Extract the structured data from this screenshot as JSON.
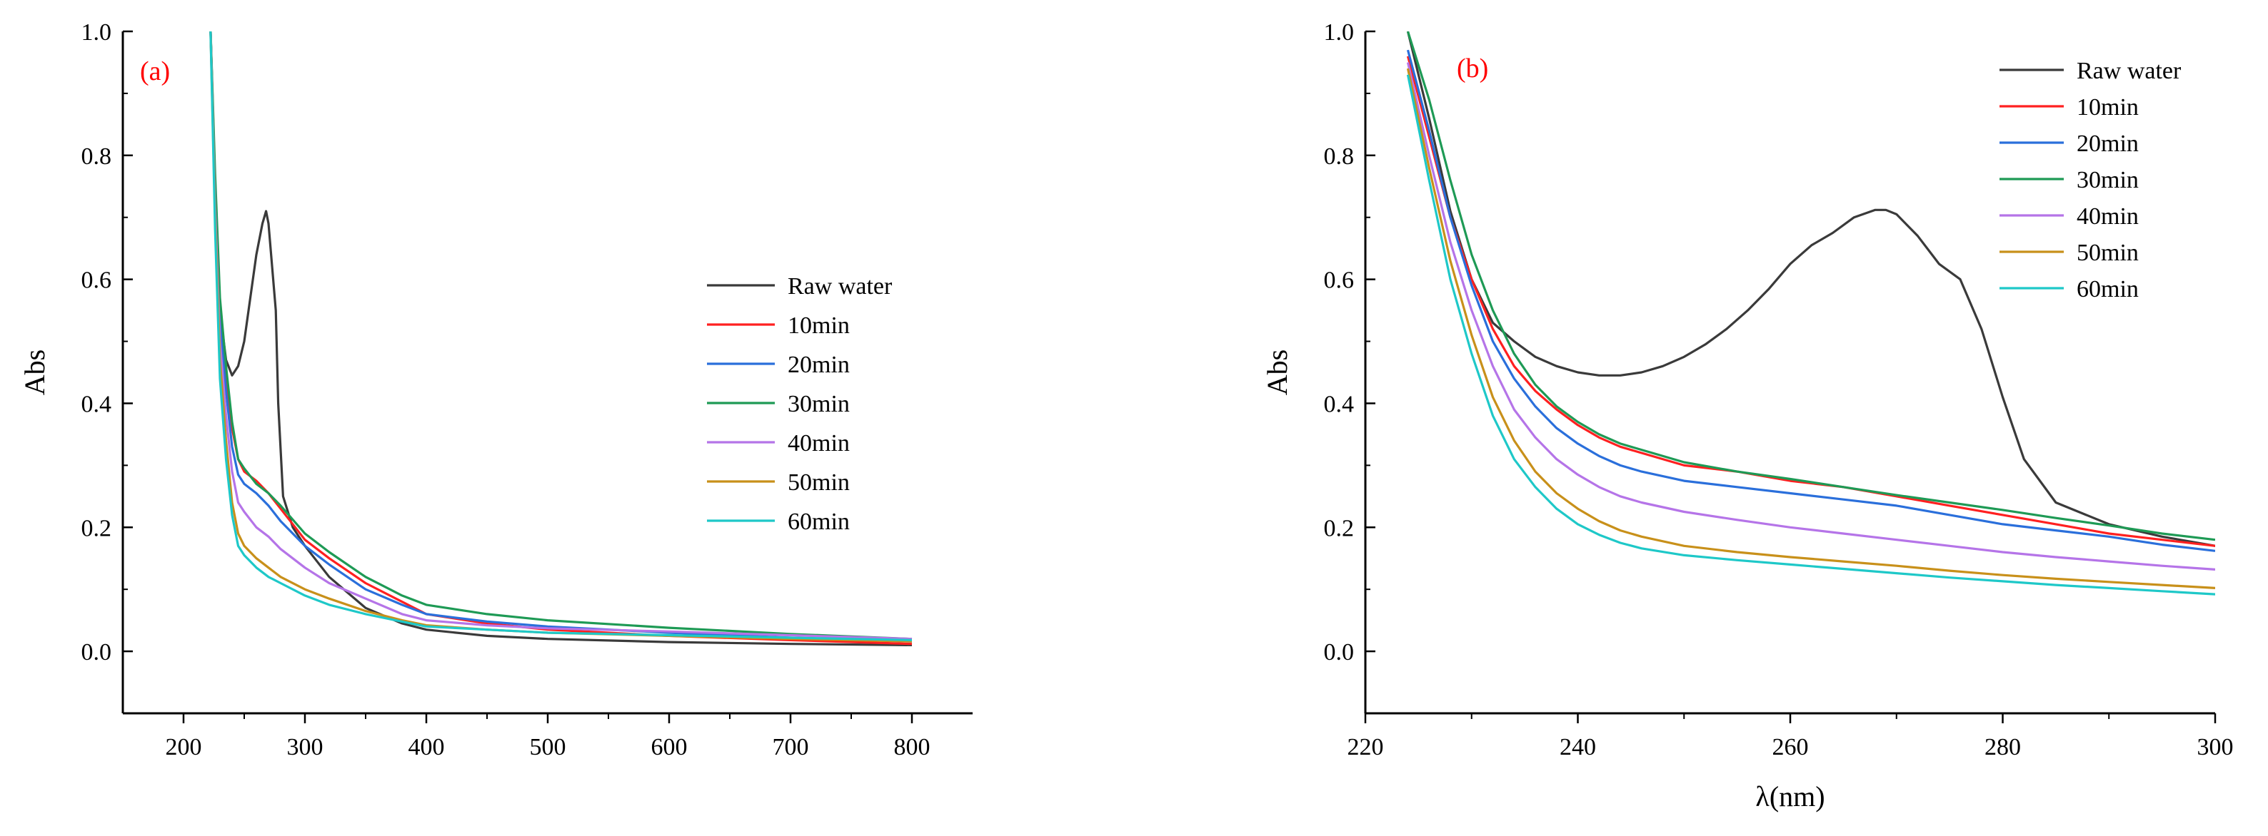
{
  "chart_data": [
    {
      "type": "line",
      "panel_label": "(a)",
      "title": "",
      "xlabel": "",
      "ylabel": "Abs",
      "xlim": [
        150,
        850
      ],
      "ylim": [
        -0.1,
        1.0
      ],
      "xticks": [
        200,
        300,
        400,
        500,
        600,
        700,
        800
      ],
      "xtick_labels": [
        "200",
        "300",
        "400",
        "500",
        "600",
        "700",
        "800"
      ],
      "yticks": [
        0.0,
        0.2,
        0.4,
        0.6,
        0.8,
        1.0
      ],
      "ytick_labels": [
        "0.0",
        "0.2",
        "0.4",
        "0.6",
        "0.8",
        "1.0"
      ],
      "legend_position": "right",
      "series": [
        {
          "name": "Raw water",
          "color": "#3a3a3a",
          "x": [
            222,
            226,
            230,
            235,
            240,
            245,
            250,
            255,
            260,
            265,
            268,
            270,
            273,
            276,
            278,
            282,
            290,
            300,
            320,
            350,
            380,
            400,
            450,
            500,
            600,
            700,
            800
          ],
          "y": [
            1.02,
            0.75,
            0.55,
            0.47,
            0.445,
            0.46,
            0.5,
            0.57,
            0.64,
            0.69,
            0.71,
            0.69,
            0.62,
            0.55,
            0.4,
            0.25,
            0.2,
            0.17,
            0.12,
            0.07,
            0.045,
            0.035,
            0.025,
            0.02,
            0.015,
            0.012,
            0.01
          ]
        },
        {
          "name": "10min",
          "color": "#ff2020",
          "x": [
            222,
            226,
            230,
            235,
            240,
            245,
            250,
            260,
            270,
            280,
            300,
            320,
            350,
            380,
            400,
            450,
            500,
            600,
            700,
            800
          ],
          "y": [
            1.02,
            0.75,
            0.55,
            0.45,
            0.36,
            0.31,
            0.29,
            0.275,
            0.255,
            0.23,
            0.18,
            0.15,
            0.11,
            0.08,
            0.06,
            0.045,
            0.035,
            0.025,
            0.018,
            0.012
          ]
        },
        {
          "name": "20min",
          "color": "#2a6fdb",
          "x": [
            222,
            226,
            230,
            235,
            240,
            245,
            250,
            260,
            270,
            280,
            300,
            320,
            350,
            380,
            400,
            450,
            500,
            600,
            700,
            800
          ],
          "y": [
            1.02,
            0.74,
            0.53,
            0.42,
            0.33,
            0.285,
            0.27,
            0.255,
            0.235,
            0.21,
            0.17,
            0.14,
            0.1,
            0.075,
            0.06,
            0.048,
            0.04,
            0.03,
            0.022,
            0.016
          ]
        },
        {
          "name": "30min",
          "color": "#1e9a55",
          "x": [
            222,
            226,
            230,
            235,
            240,
            245,
            250,
            260,
            270,
            280,
            300,
            320,
            350,
            370,
            380,
            400,
            450,
            500,
            600,
            700,
            800
          ],
          "y": [
            1.02,
            0.77,
            0.57,
            0.46,
            0.37,
            0.31,
            0.295,
            0.27,
            0.255,
            0.235,
            0.19,
            0.16,
            0.12,
            0.1,
            0.09,
            0.075,
            0.06,
            0.05,
            0.038,
            0.028,
            0.02
          ]
        },
        {
          "name": "40min",
          "color": "#b574e8",
          "x": [
            222,
            226,
            230,
            235,
            240,
            245,
            250,
            260,
            270,
            280,
            300,
            320,
            350,
            380,
            400,
            450,
            500,
            600,
            700,
            800
          ],
          "y": [
            1.02,
            0.72,
            0.5,
            0.38,
            0.29,
            0.24,
            0.225,
            0.2,
            0.185,
            0.165,
            0.135,
            0.11,
            0.085,
            0.06,
            0.05,
            0.042,
            0.037,
            0.032,
            0.026,
            0.02
          ]
        },
        {
          "name": "50min",
          "color": "#c8901a",
          "x": [
            222,
            226,
            230,
            235,
            240,
            245,
            250,
            260,
            270,
            280,
            300,
            320,
            350,
            380,
            400,
            450,
            500,
            600,
            700,
            800
          ],
          "y": [
            1.02,
            0.7,
            0.47,
            0.34,
            0.24,
            0.19,
            0.17,
            0.15,
            0.135,
            0.12,
            0.1,
            0.085,
            0.065,
            0.05,
            0.042,
            0.035,
            0.03,
            0.025,
            0.02,
            0.016
          ]
        },
        {
          "name": "60min",
          "color": "#1ec8c8",
          "x": [
            222,
            226,
            230,
            235,
            240,
            245,
            250,
            260,
            270,
            280,
            300,
            320,
            350,
            380,
            400,
            450,
            500,
            600,
            700,
            800
          ],
          "y": [
            1.02,
            0.68,
            0.44,
            0.31,
            0.22,
            0.17,
            0.155,
            0.135,
            0.12,
            0.11,
            0.09,
            0.075,
            0.06,
            0.048,
            0.04,
            0.035,
            0.03,
            0.026,
            0.022,
            0.018
          ]
        }
      ]
    },
    {
      "type": "line",
      "panel_label": "(b)",
      "title": "",
      "xlabel": "λ(nm)",
      "ylabel": "Abs",
      "xlim": [
        220,
        300
      ],
      "ylim": [
        -0.1,
        1.0
      ],
      "xticks": [
        220,
        240,
        260,
        280,
        300
      ],
      "xtick_labels": [
        "220",
        "240",
        "260",
        "280",
        "300"
      ],
      "yticks": [
        0.0,
        0.2,
        0.4,
        0.6,
        0.8,
        1.0
      ],
      "ytick_labels": [
        "0.0",
        "0.2",
        "0.4",
        "0.6",
        "0.8",
        "1.0"
      ],
      "legend_position": "top-right",
      "series": [
        {
          "name": "Raw water",
          "color": "#3a3a3a",
          "x": [
            224,
            226,
            228,
            230,
            232,
            234,
            236,
            238,
            240,
            242,
            244,
            246,
            248,
            250,
            252,
            254,
            256,
            258,
            260,
            262,
            264,
            266,
            268,
            269,
            270,
            272,
            274,
            276,
            278,
            280,
            282,
            285,
            290,
            295,
            300
          ],
          "y": [
            1.0,
            0.86,
            0.71,
            0.6,
            0.53,
            0.5,
            0.475,
            0.46,
            0.45,
            0.445,
            0.445,
            0.45,
            0.46,
            0.475,
            0.495,
            0.52,
            0.55,
            0.585,
            0.625,
            0.655,
            0.675,
            0.7,
            0.712,
            0.712,
            0.705,
            0.67,
            0.625,
            0.6,
            0.52,
            0.41,
            0.31,
            0.24,
            0.205,
            0.185,
            0.17
          ]
        },
        {
          "name": "10min",
          "color": "#ff2020",
          "x": [
            224,
            226,
            228,
            230,
            232,
            234,
            236,
            238,
            240,
            242,
            244,
            246,
            250,
            255,
            260,
            265,
            270,
            275,
            280,
            285,
            290,
            295,
            300
          ],
          "y": [
            0.96,
            0.83,
            0.7,
            0.6,
            0.52,
            0.46,
            0.42,
            0.39,
            0.365,
            0.345,
            0.33,
            0.32,
            0.3,
            0.29,
            0.275,
            0.265,
            0.25,
            0.235,
            0.22,
            0.205,
            0.19,
            0.18,
            0.17
          ]
        },
        {
          "name": "20min",
          "color": "#2a6fdb",
          "x": [
            224,
            226,
            228,
            230,
            232,
            234,
            236,
            238,
            240,
            242,
            244,
            246,
            250,
            255,
            260,
            265,
            270,
            275,
            280,
            285,
            290,
            295,
            300
          ],
          "y": [
            0.97,
            0.84,
            0.7,
            0.59,
            0.5,
            0.44,
            0.395,
            0.36,
            0.335,
            0.315,
            0.3,
            0.29,
            0.275,
            0.265,
            0.255,
            0.245,
            0.235,
            0.22,
            0.205,
            0.195,
            0.185,
            0.172,
            0.162
          ]
        },
        {
          "name": "30min",
          "color": "#1e9a55",
          "x": [
            224,
            226,
            228,
            230,
            232,
            234,
            236,
            238,
            240,
            242,
            244,
            246,
            250,
            255,
            260,
            265,
            270,
            275,
            280,
            285,
            290,
            295,
            300
          ],
          "y": [
            1.0,
            0.89,
            0.76,
            0.64,
            0.55,
            0.48,
            0.43,
            0.395,
            0.37,
            0.35,
            0.335,
            0.325,
            0.305,
            0.29,
            0.278,
            0.265,
            0.252,
            0.24,
            0.228,
            0.215,
            0.203,
            0.19,
            0.18
          ]
        },
        {
          "name": "40min",
          "color": "#b574e8",
          "x": [
            224,
            226,
            228,
            230,
            232,
            234,
            236,
            238,
            240,
            242,
            244,
            246,
            250,
            255,
            260,
            265,
            270,
            275,
            280,
            285,
            290,
            295,
            300
          ],
          "y": [
            0.95,
            0.8,
            0.66,
            0.55,
            0.46,
            0.39,
            0.345,
            0.31,
            0.285,
            0.265,
            0.25,
            0.24,
            0.225,
            0.212,
            0.2,
            0.19,
            0.18,
            0.17,
            0.16,
            0.152,
            0.145,
            0.138,
            0.132
          ]
        },
        {
          "name": "50min",
          "color": "#c8901a",
          "x": [
            224,
            226,
            228,
            230,
            232,
            234,
            236,
            238,
            240,
            242,
            244,
            246,
            250,
            255,
            260,
            265,
            270,
            275,
            280,
            285,
            290,
            295,
            300
          ],
          "y": [
            0.94,
            0.78,
            0.63,
            0.51,
            0.41,
            0.34,
            0.29,
            0.255,
            0.23,
            0.21,
            0.195,
            0.185,
            0.17,
            0.16,
            0.152,
            0.145,
            0.138,
            0.13,
            0.123,
            0.117,
            0.112,
            0.107,
            0.102
          ]
        },
        {
          "name": "60min",
          "color": "#1ec8c8",
          "x": [
            224,
            226,
            228,
            230,
            232,
            234,
            236,
            238,
            240,
            242,
            244,
            246,
            250,
            255,
            260,
            265,
            270,
            275,
            280,
            285,
            290,
            295,
            300
          ],
          "y": [
            0.93,
            0.76,
            0.6,
            0.48,
            0.38,
            0.31,
            0.265,
            0.23,
            0.205,
            0.188,
            0.175,
            0.166,
            0.155,
            0.147,
            0.14,
            0.133,
            0.126,
            0.119,
            0.113,
            0.107,
            0.102,
            0.097,
            0.092
          ]
        }
      ]
    }
  ]
}
